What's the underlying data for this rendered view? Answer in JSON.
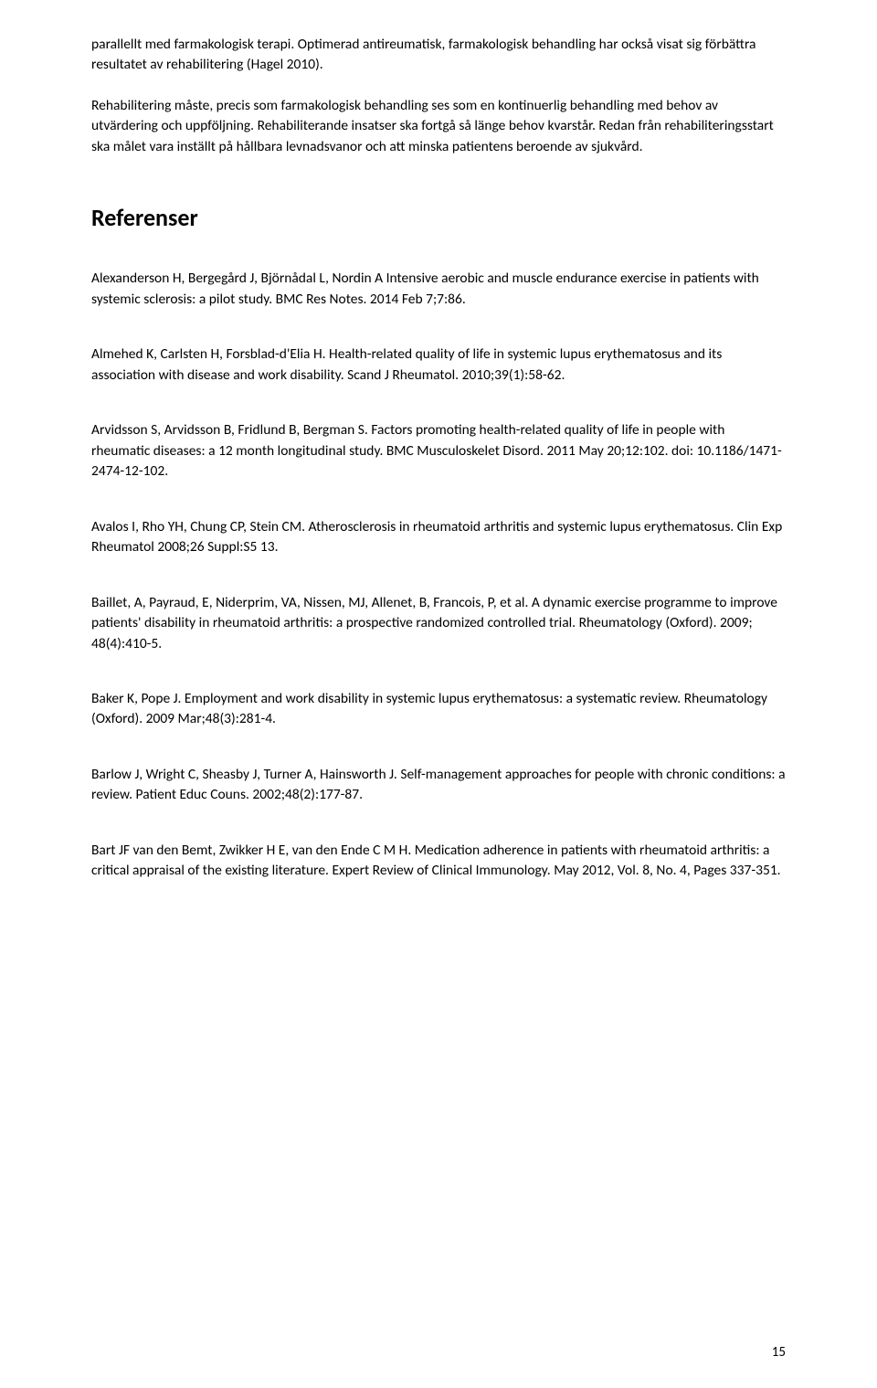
{
  "intro_paragraph": "parallellt med farmakologisk terapi. Optimerad antireumatisk, farmakologisk behandling har också visat sig förbättra resultatet av rehabilitering (Hagel 2010).",
  "body_paragraph": "Rehabilitering måste, precis som farmakologisk behandling ses som en kontinuerlig behandling med behov av utvärdering och uppföljning. Rehabiliterande insatser ska fortgå så länge behov kvarstår. Redan från rehabiliteringsstart ska målet vara inställt på hållbara levnadsvanor och att minska patientens beroende av sjukvård.",
  "heading": "Referenser",
  "references": [
    "Alexanderson H, Bergegård J, Björnådal L, Nordin A Intensive aerobic and muscle endurance exercise in patients with systemic sclerosis: a pilot study. BMC Res Notes. 2014 Feb 7;7:86.",
    "Almehed K, Carlsten H, Forsblad-d'Elia H. Health-related quality of life in systemic lupus erythematosus and its association with disease and work disability. Scand J Rheumatol. 2010;39(1):58-62.",
    "Arvidsson S, Arvidsson B, Fridlund B, Bergman S. Factors promoting health-related quality of life in people with rheumatic diseases: a 12 month longitudinal study. BMC Musculoskelet Disord. 2011 May 20;12:102. doi: 10.1186/1471-2474-12-102.",
    "Avalos I, Rho YH, Chung CP, Stein CM. Atherosclerosis in rheumatoid arthritis and systemic lupus erythematosus. Clin Exp Rheumatol 2008;26 Suppl:S5 13.",
    "Baillet, A, Payraud, E, Niderprim, VA, Nissen, MJ, Allenet, B, Francois, P, et al. A dynamic exercise programme to improve patients' disability in rheumatoid arthritis: a prospective randomized controlled trial. Rheumatology (Oxford). 2009; 48(4):410-5.",
    "Baker K, Pope J. Employment and work disability in systemic lupus erythematosus: a systematic review.  Rheumatology (Oxford). 2009 Mar;48(3):281-4.",
    "Barlow J, Wright C, Sheasby J, Turner A, Hainsworth J. Self-management approaches for people with chronic conditions: a review. Patient Educ Couns. 2002;48(2):177-87.",
    "Bart JF van den Bemt,  Zwikker H E,  van den Ende C M H. Medication adherence in patients with rheumatoid arthritis: a critical appraisal of the existing literature. Expert Review of Clinical Immunology. May 2012, Vol. 8, No. 4, Pages 337-351."
  ],
  "page_number": "15"
}
